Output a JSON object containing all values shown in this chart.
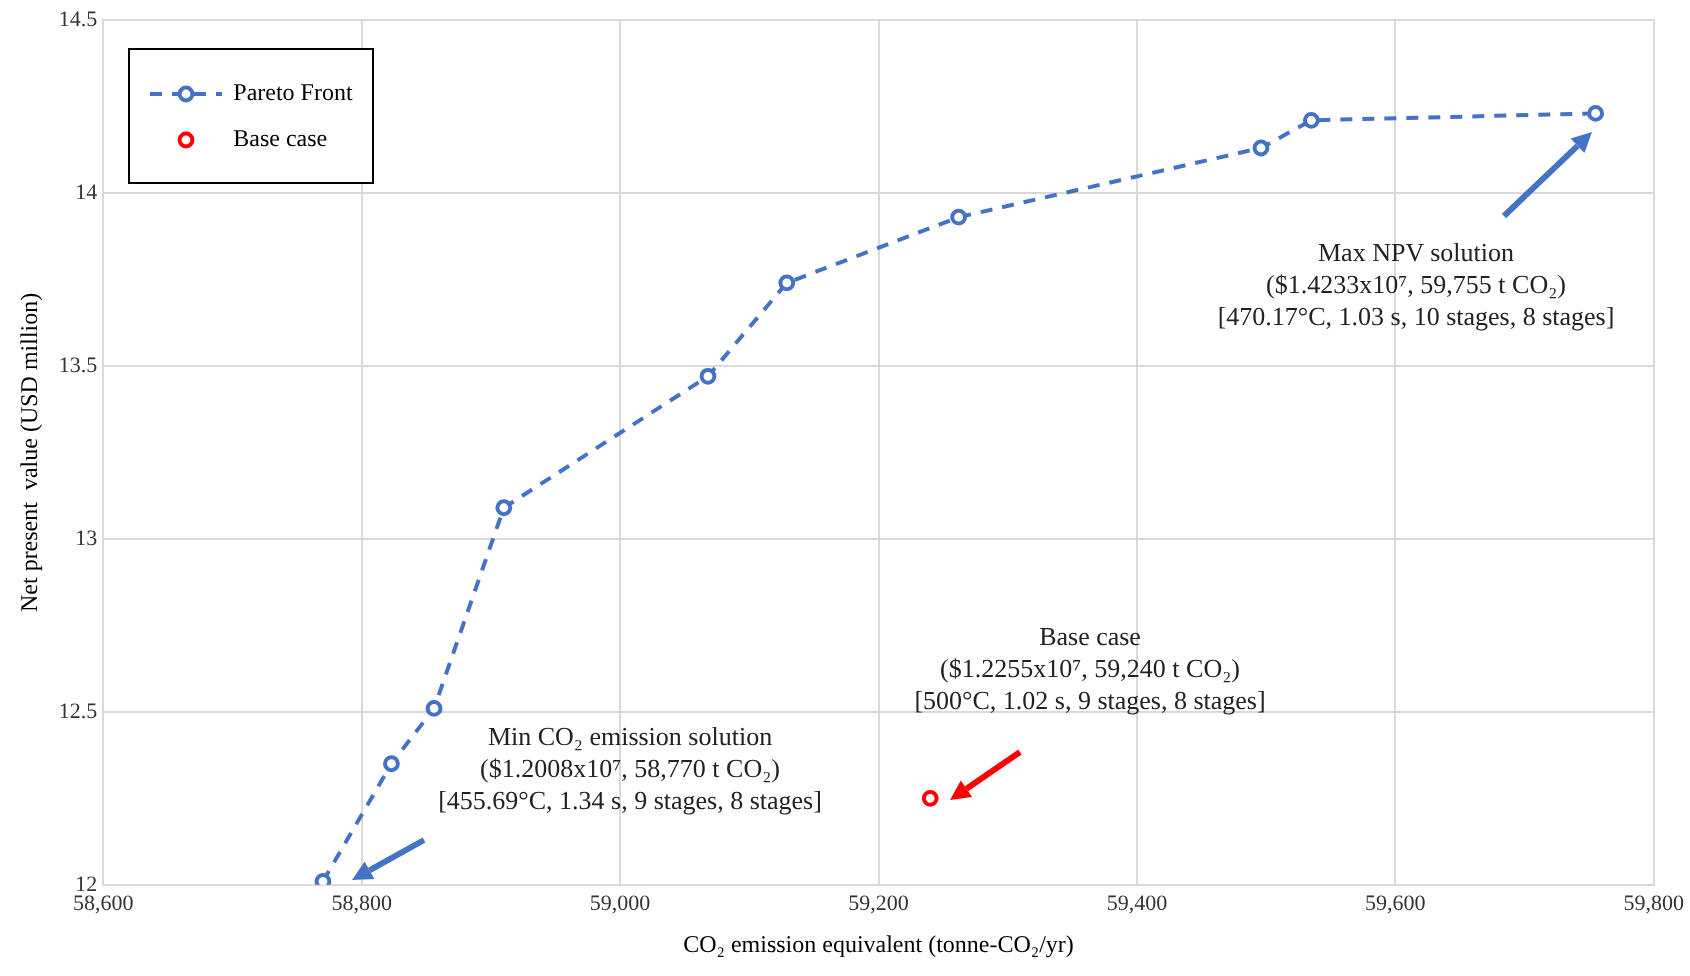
{
  "chart_data": {
    "type": "line",
    "xlabel": "CO₂ emission equivalent (tonne-CO₂/yr)",
    "ylabel": "Net present  value (USD million)",
    "series": [
      {
        "name": "Pareto Front",
        "color": "#4472c4",
        "type": "line",
        "line_style": "dashed",
        "x": [
          58770,
          58823,
          58856,
          58910,
          59068,
          59129,
          59262,
          59496,
          59535,
          59755
        ],
        "values": [
          12.01,
          12.35,
          12.51,
          13.09,
          13.47,
          13.74,
          13.93,
          14.13,
          14.21,
          14.23
        ]
      },
      {
        "name": "Base case",
        "color": "#ff0000",
        "type": "scatter",
        "x": [
          59240
        ],
        "values": [
          12.25
        ]
      }
    ],
    "xlim": [
      58600,
      59800
    ],
    "xticks": [
      {
        "value": 58600,
        "label": "58,600"
      },
      {
        "value": 58800,
        "label": "58,800"
      },
      {
        "value": 59000,
        "label": "59,000"
      },
      {
        "value": 59200,
        "label": "59,200"
      },
      {
        "value": 59400,
        "label": "59,400"
      },
      {
        "value": 59600,
        "label": "59,600"
      },
      {
        "value": 59800,
        "label": "59,800"
      }
    ],
    "ylim": [
      12,
      14.5
    ],
    "yticks": [
      12,
      12.5,
      13,
      13.5,
      14,
      14.5
    ],
    "grid": true,
    "legend": "top left",
    "marker": "circle",
    "annotations": [
      "Min CO₂ emission solution\n($1.2008x10⁷, 58,770 t CO₂)\n[455.69°C, 1.34 s, 9 stages, 8 stages]",
      "Base case\n($1.2255x10⁷, 59,240 t CO₂)\n[500°C, 1.02 s, 9 stages, 8 stages]",
      "Max NPV solution\n($1.4233x10⁷, 59,755 t CO₂)\n[470.17°C, 1.03 s, 10 stages, 8 stages]"
    ]
  }
}
